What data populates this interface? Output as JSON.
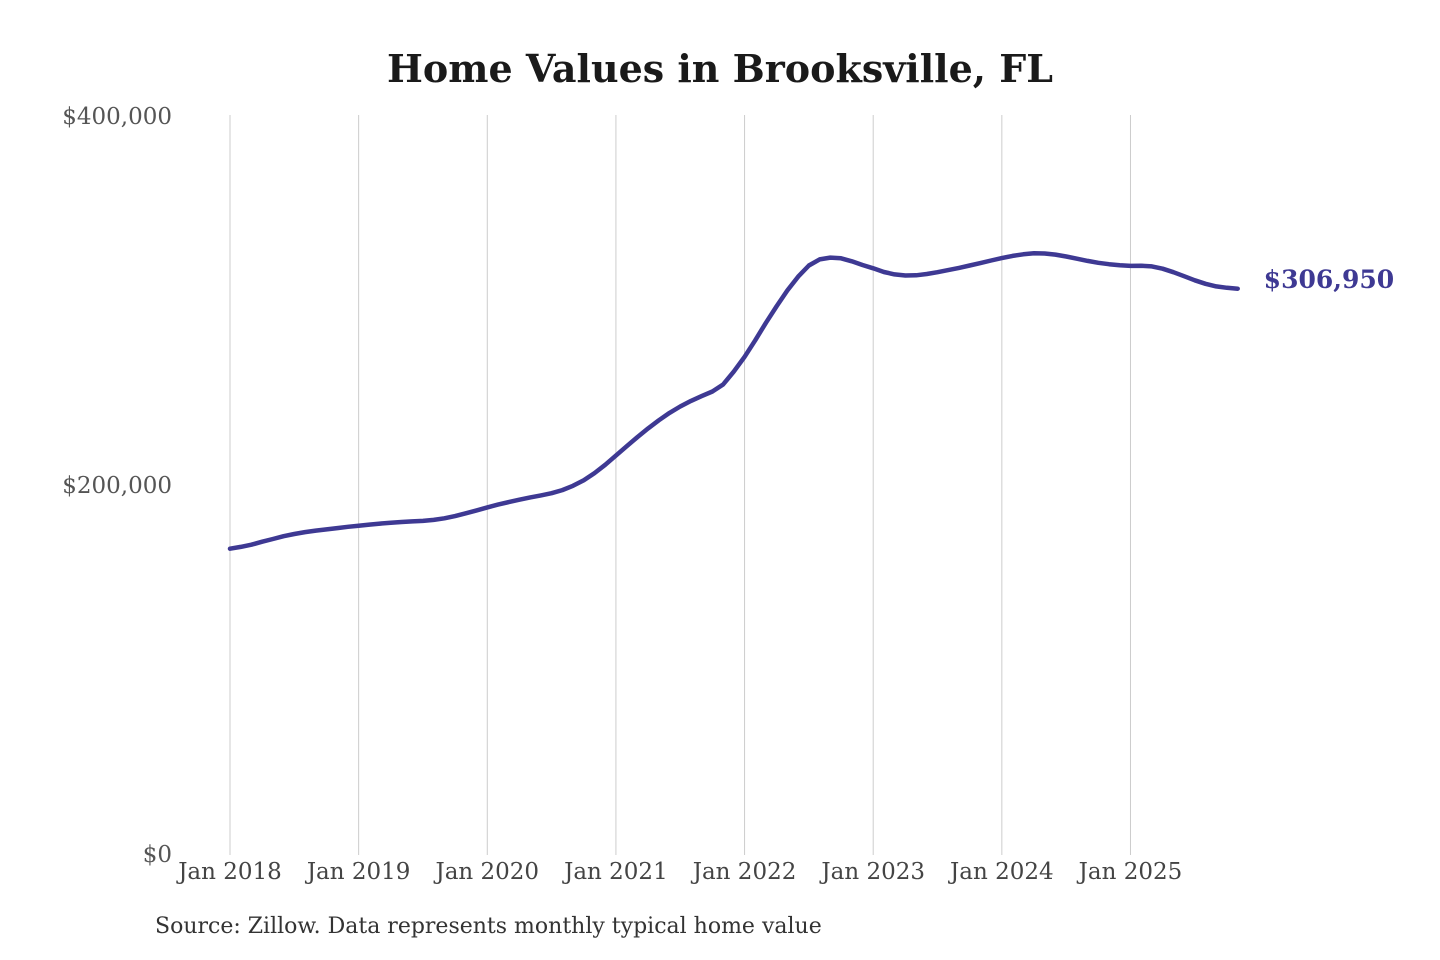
{
  "chart_data": {
    "type": "line",
    "title": "Home Values in Brooksville, FL",
    "source": "Source: Zillow. Data represents monthly typical home value",
    "end_label": "$306,950",
    "latest_value": 306950,
    "xlabel": "",
    "ylabel": "",
    "ylim": [
      0,
      400000
    ],
    "grid": "vertical-yearly",
    "legend": "none",
    "x_tick_labels": [
      "Jan 2018",
      "Jan 2019",
      "Jan 2020",
      "Jan 2021",
      "Jan 2022",
      "Jan 2023",
      "Jan 2024",
      "Jan 2025"
    ],
    "y_ticks": [
      {
        "label": "$400,000",
        "value": 400000
      },
      {
        "label": "$200,000",
        "value": 200000
      },
      {
        "label": "$0",
        "value": 0
      }
    ],
    "series": [
      {
        "name": "Monthly typical home value",
        "start_month": "Jan 2018",
        "end_month": "Nov 2025",
        "frequency": "monthly",
        "values": [
          166000,
          167000,
          168200,
          169800,
          171300,
          172800,
          174000,
          175000,
          175800,
          176500,
          177200,
          177900,
          178500,
          179100,
          179600,
          180100,
          180500,
          180800,
          181100,
          181600,
          182500,
          183700,
          185200,
          186800,
          188400,
          189900,
          191300,
          192600,
          193800,
          194900,
          196100,
          197800,
          200100,
          203100,
          207000,
          211500,
          216500,
          221500,
          226500,
          231200,
          235600,
          239600,
          243100,
          246100,
          248700,
          251200,
          255000,
          262000,
          270000,
          279000,
          288500,
          297500,
          306000,
          313500,
          319500,
          322800,
          323800,
          323400,
          321800,
          319800,
          318000,
          316000,
          314700,
          314100,
          314200,
          314900,
          315900,
          317000,
          318200,
          319500,
          320800,
          322200,
          323500,
          324700,
          325600,
          326100,
          326000,
          325400,
          324400,
          323200,
          322000,
          321000,
          320200,
          319600,
          319300,
          319400,
          319000,
          317800,
          315900,
          313700,
          311500,
          309600,
          308200,
          307400,
          306950
        ]
      }
    ],
    "colors": {
      "line": "#3e3993",
      "end_label": "#3e3993",
      "gridline": "#cccccc",
      "tick_text": "#555555",
      "x_tick_text": "#444444",
      "title_text": "#1a1a1a",
      "source_text": "#333333",
      "background": "#ffffff"
    }
  }
}
